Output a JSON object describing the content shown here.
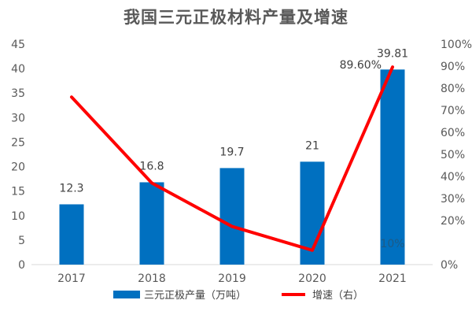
{
  "chart_data": {
    "type": "bar+line",
    "title": "我国三元正极材料产量及增速",
    "categories": [
      "2017",
      "2018",
      "2019",
      "2020",
      "2021"
    ],
    "series": [
      {
        "name": "三元正极产量（万吨）",
        "type": "bar",
        "axis": "left",
        "color": "#0070c0",
        "values": [
          12.3,
          16.8,
          19.7,
          21,
          39.81
        ],
        "labels": [
          "12.3",
          "16.8",
          "19.7",
          "21",
          "39.81"
        ]
      },
      {
        "name": "增速（右）",
        "type": "line",
        "axis": "right",
        "color": "#ff0000",
        "values": [
          76,
          37,
          17.3,
          6.5,
          89.6
        ]
      }
    ],
    "point_labels": [
      "89.60%",
      "10%"
    ],
    "y_left": {
      "min": 0,
      "max": 45,
      "step": 5,
      "ticks": [
        "0",
        "5",
        "10",
        "15",
        "20",
        "25",
        "30",
        "35",
        "40",
        "45"
      ]
    },
    "y_right": {
      "ticks": [
        "0%",
        "20%",
        "30%",
        "40%",
        "50%",
        "60%",
        "70%",
        "80%",
        "90%",
        "100%"
      ],
      "tick_values": [
        0,
        20,
        30,
        40,
        50,
        60,
        70,
        80,
        90,
        100
      ]
    },
    "legend_position": "bottom",
    "grid": false
  }
}
